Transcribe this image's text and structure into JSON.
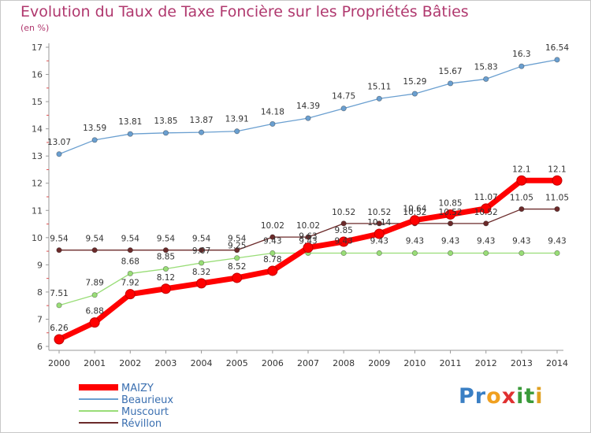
{
  "header": {
    "title": "Evolution du Taux de Taxe Foncière sur les Propriétés Bâties",
    "unit": "(en %)"
  },
  "logo": {
    "letters": [
      {
        "ch": "P",
        "color": "#3a7fc4"
      },
      {
        "ch": "r",
        "color": "#3a7fc4"
      },
      {
        "ch": "o",
        "color": "#f0a020"
      },
      {
        "ch": "x",
        "color": "#e03030"
      },
      {
        "ch": "i",
        "color": "#3a9a3a"
      },
      {
        "ch": "t",
        "color": "#3a9a3a"
      },
      {
        "ch": "i",
        "color": "#e0a020"
      }
    ]
  },
  "chart_data": {
    "type": "line",
    "title": "Evolution du Taux de Taxe Foncière sur les Propriétés Bâties",
    "ylabel": "(en %)",
    "xlabel": "",
    "x": [
      "2000",
      "2001",
      "2002",
      "2003",
      "2004",
      "2005",
      "2006",
      "2007",
      "2008",
      "2009",
      "2010",
      "2011",
      "2012",
      "2013",
      "2014"
    ],
    "ylim": [
      6,
      17
    ],
    "yticks": [
      6,
      7,
      8,
      9,
      10,
      11,
      12,
      13,
      14,
      15,
      16,
      17
    ],
    "grid": false,
    "legend_position": "bottom-left",
    "series": [
      {
        "name": "MAIZY",
        "color": "#ff0000",
        "values": [
          6.26,
          6.88,
          7.92,
          8.12,
          8.32,
          8.52,
          8.78,
          9.63,
          9.85,
          10.14,
          10.64,
          10.85,
          11.07,
          12.1,
          12.1
        ],
        "labels": [
          "6.26",
          "6.88",
          "7.92",
          "8.12",
          "8.32",
          "8.52",
          "8.78",
          "9.63",
          "9.85",
          "10.14",
          "10.64",
          "10.85",
          "11.07",
          "12.1",
          "12.1"
        ]
      },
      {
        "name": "Beaurieux",
        "color": "#6a9fd0",
        "values": [
          13.07,
          13.59,
          13.81,
          13.85,
          13.87,
          13.91,
          14.18,
          14.39,
          14.75,
          15.11,
          15.29,
          15.67,
          15.83,
          16.3,
          16.54
        ],
        "labels": [
          "13.07",
          "13.59",
          "13.81",
          "13.85",
          "13.87",
          "13.91",
          "14.18",
          "14.39",
          "14.75",
          "15.11",
          "15.29",
          "15.67",
          "15.83",
          "16.3",
          "16.54"
        ]
      },
      {
        "name": "Muscourt",
        "color": "#99dd77",
        "values": [
          7.51,
          7.89,
          8.68,
          8.85,
          9.07,
          9.25,
          9.43,
          9.43,
          9.43,
          9.43,
          9.43,
          9.43,
          9.43,
          9.43,
          9.43
        ],
        "labels": [
          "7.51",
          "7.89",
          "8.68",
          "8.85",
          "9.07",
          "9.25",
          "9.43",
          "9.43",
          "9.43",
          "9.43",
          "9.43",
          "9.43",
          "9.43",
          "9.43",
          "9.43"
        ]
      },
      {
        "name": "Révillon",
        "color": "#6b2a2a",
        "values": [
          9.54,
          9.54,
          9.54,
          9.54,
          9.54,
          9.54,
          10.02,
          10.02,
          10.52,
          10.52,
          10.52,
          10.52,
          10.52,
          11.05,
          11.05
        ],
        "labels": [
          "9.54",
          "9.54",
          "9.54",
          "9.54",
          "9.54",
          "9.54",
          "10.02",
          "10.02",
          "10.52",
          "10.52",
          "10.52",
          "10.52",
          "10.52",
          "11.05",
          "11.05"
        ]
      }
    ]
  }
}
